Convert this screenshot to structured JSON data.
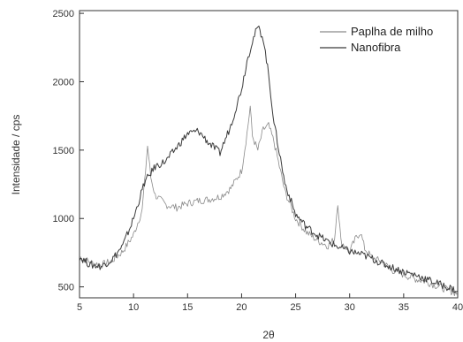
{
  "chart_data": {
    "type": "line",
    "title": "",
    "xlabel": "2θ",
    "ylabel": "Intensidade / cps",
    "xlim": [
      5,
      40
    ],
    "ylim": [
      420,
      2520
    ],
    "x_ticks": [
      5,
      10,
      15,
      20,
      25,
      30,
      35,
      40
    ],
    "y_ticks": [
      500,
      1000,
      1500,
      2000,
      2500
    ],
    "grid": false,
    "legend_position": "top-right",
    "series": [
      {
        "name": "Paplha de milho",
        "color": "#8a8a8a",
        "x": [
          5,
          6,
          7,
          8,
          9,
          10,
          10.8,
          11.3,
          11.6,
          12.0,
          13,
          14,
          15,
          16,
          17,
          18,
          19,
          20,
          20.5,
          20.8,
          21.0,
          21.5,
          22.0,
          22.5,
          23,
          24,
          25,
          26,
          27,
          28,
          28.6,
          28.9,
          29.2,
          30,
          30.6,
          31.0,
          31.4,
          32,
          33,
          34,
          35,
          36,
          37,
          38,
          39,
          40
        ],
        "y": [
          720,
          680,
          660,
          690,
          760,
          880,
          1060,
          1530,
          1300,
          1170,
          1100,
          1080,
          1110,
          1130,
          1140,
          1160,
          1220,
          1350,
          1620,
          1820,
          1600,
          1500,
          1650,
          1680,
          1560,
          1200,
          1000,
          900,
          840,
          800,
          850,
          1120,
          830,
          760,
          860,
          900,
          780,
          720,
          680,
          620,
          590,
          560,
          540,
          510,
          480,
          450
        ]
      },
      {
        "name": "Nanofibra",
        "color": "#3a3a3a",
        "x": [
          5,
          6,
          7,
          8,
          9,
          10,
          11,
          12,
          13,
          14,
          15,
          16,
          17,
          18,
          19,
          20,
          20.5,
          21,
          21.5,
          22,
          22.5,
          23,
          24,
          25,
          26,
          27,
          28,
          29,
          30,
          31,
          32,
          33,
          34,
          35,
          36,
          37,
          38,
          39,
          40
        ],
        "y": [
          720,
          660,
          650,
          700,
          800,
          1000,
          1260,
          1380,
          1420,
          1520,
          1620,
          1640,
          1550,
          1480,
          1680,
          1950,
          2150,
          2300,
          2400,
          2320,
          2050,
          1700,
          1260,
          1030,
          940,
          880,
          830,
          790,
          760,
          740,
          710,
          670,
          640,
          610,
          590,
          560,
          530,
          500,
          470
        ]
      }
    ]
  }
}
